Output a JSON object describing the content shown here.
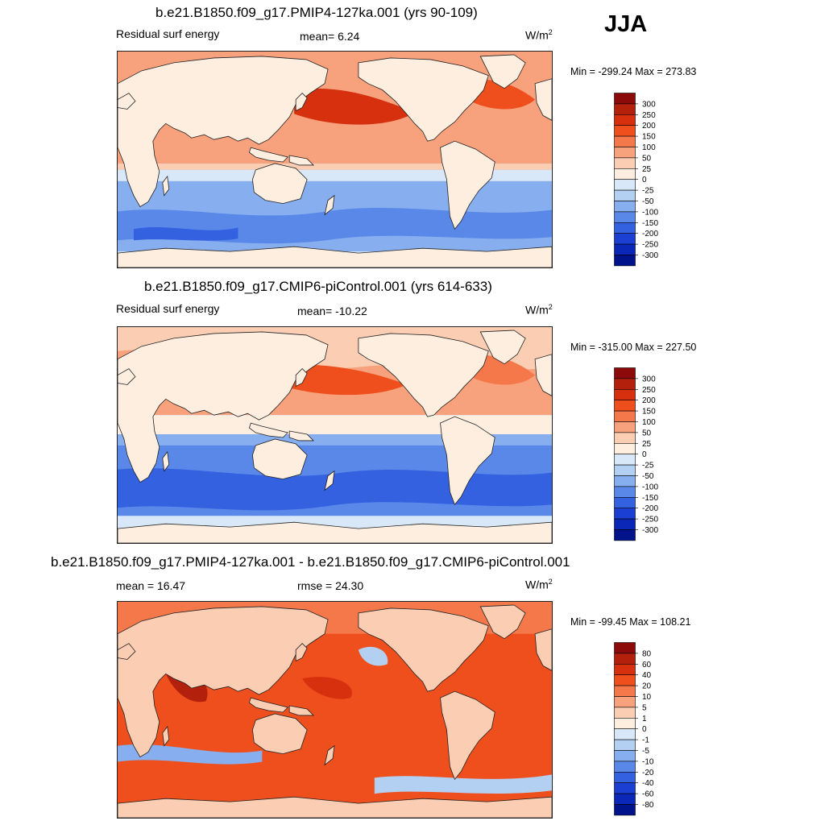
{
  "season": "JJA",
  "panels": [
    {
      "title": "b.e21.B1850.f09_g17.PMIP4-127ka.001 (yrs 90-109)",
      "left_label": "Residual surf energy",
      "center_label": "mean=   6.24",
      "units_base": "W/m",
      "units_exp": "2",
      "minmax": "Min = -299.24 Max = 273.83",
      "levels": [
        "300",
        "250",
        "200",
        "150",
        "100",
        "50",
        "25",
        "0",
        "-25",
        "-50",
        "-100",
        "-150",
        "-200",
        "-250",
        "-300"
      ],
      "colors": [
        "#8c0a0a",
        "#b3200c",
        "#d6300e",
        "#ee4f1c",
        "#f4784a",
        "#f8a27d",
        "#fbcdb3",
        "#fdeee0",
        "#d8e8f8",
        "#b3cff2",
        "#87aeee",
        "#5a88e8",
        "#3461e0",
        "#1a3fd2",
        "#0b27b8",
        "#00138a"
      ]
    },
    {
      "title": "b.e21.B1850.f09_g17.CMIP6-piControl.001 (yrs 614-633)",
      "left_label": "Residual surf energy",
      "center_label": "mean= -10.22",
      "units_base": "W/m",
      "units_exp": "2",
      "minmax": "Min = -315.00 Max = 227.50",
      "levels": [
        "300",
        "250",
        "200",
        "150",
        "100",
        "50",
        "25",
        "0",
        "-25",
        "-50",
        "-100",
        "-150",
        "-200",
        "-250",
        "-300"
      ],
      "colors": [
        "#8c0a0a",
        "#b3200c",
        "#d6300e",
        "#ee4f1c",
        "#f4784a",
        "#f8a27d",
        "#fbcdb3",
        "#fdeee0",
        "#d8e8f8",
        "#b3cff2",
        "#87aeee",
        "#5a88e8",
        "#3461e0",
        "#1a3fd2",
        "#0b27b8",
        "#00138a"
      ]
    },
    {
      "title": "b.e21.B1850.f09_g17.PMIP4-127ka.001 - b.e21.B1850.f09_g17.CMIP6-piControl.001",
      "left_label": "mean =  16.47",
      "center_label": "rmse =  24.30",
      "units_base": "W/m",
      "units_exp": "2",
      "minmax": "Min = -99.45 Max = 108.21",
      "levels": [
        "80",
        "60",
        "40",
        "20",
        "10",
        "5",
        "1",
        "0",
        "-1",
        "-5",
        "-10",
        "-20",
        "-40",
        "-60",
        "-80"
      ],
      "colors": [
        "#8c0a0a",
        "#b3200c",
        "#d6300e",
        "#ee4f1c",
        "#f4784a",
        "#f8a27d",
        "#fbcdb3",
        "#fdeee0",
        "#d8e8f8",
        "#b3cff2",
        "#87aeee",
        "#5a88e8",
        "#3461e0",
        "#1a3fd2",
        "#0b27b8",
        "#00138a"
      ]
    }
  ]
}
